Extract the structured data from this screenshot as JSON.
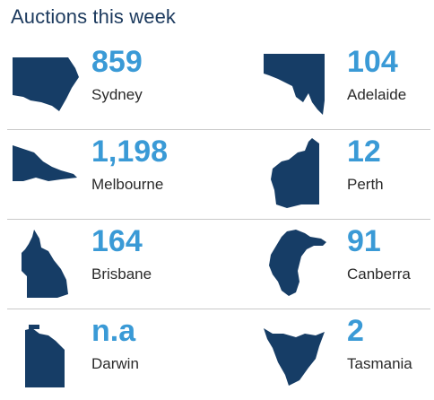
{
  "title": "Auctions this week",
  "colors": {
    "map_fill": "#163d66",
    "number": "#3a9ad6",
    "title": "#1c3a5e"
  },
  "cities": [
    {
      "name": "Sydney",
      "auctions": "859",
      "map_icon": "nsw-map-icon"
    },
    {
      "name": "Adelaide",
      "auctions": "104",
      "map_icon": "sa-map-icon"
    },
    {
      "name": "Melbourne",
      "auctions": "1,198",
      "map_icon": "vic-map-icon"
    },
    {
      "name": "Perth",
      "auctions": "12",
      "map_icon": "wa-map-icon"
    },
    {
      "name": "Brisbane",
      "auctions": "164",
      "map_icon": "qld-map-icon"
    },
    {
      "name": "Canberra",
      "auctions": "91",
      "map_icon": "act-map-icon"
    },
    {
      "name": "Darwin",
      "auctions": "n.a",
      "map_icon": "nt-map-icon"
    },
    {
      "name": "Tasmania",
      "auctions": "2",
      "map_icon": "tas-map-icon"
    }
  ]
}
